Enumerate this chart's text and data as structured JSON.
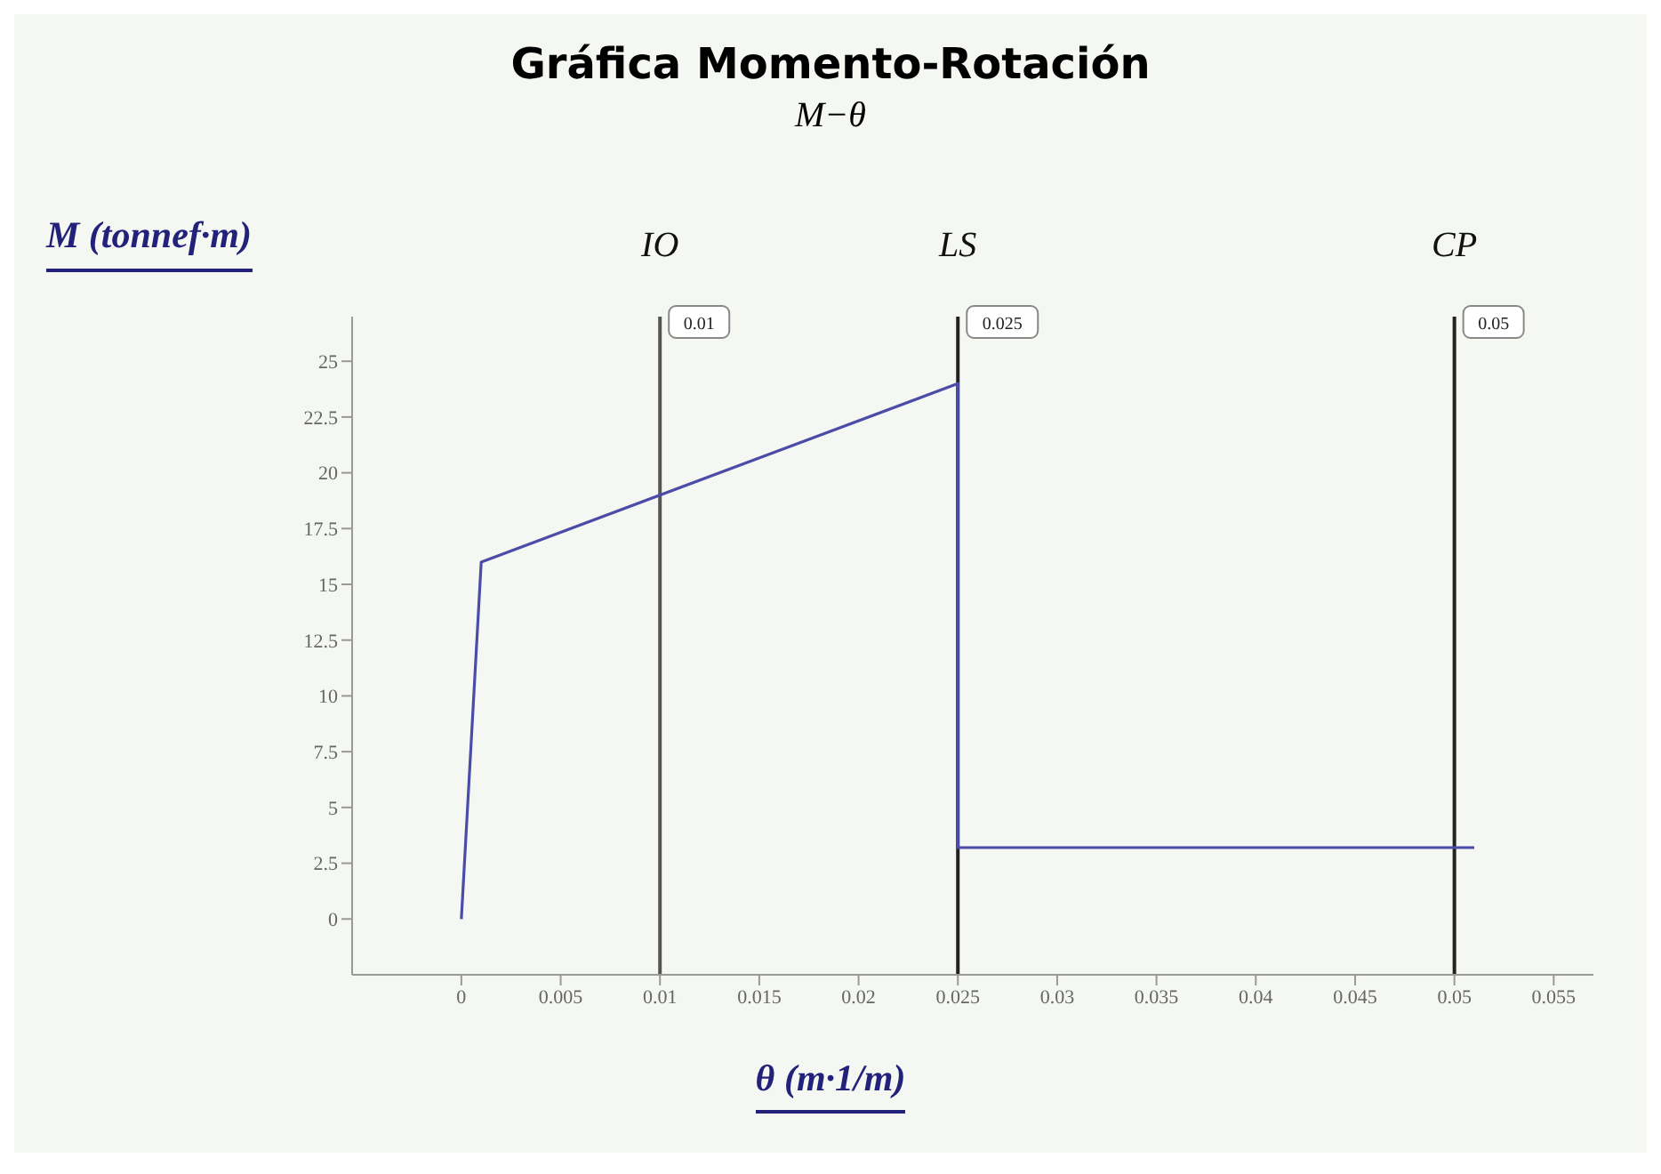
{
  "chart_data": {
    "type": "line",
    "title": "Gráfica Momento-Rotación",
    "subtitle": "M−θ",
    "xlabel": "θ (m·1/m)",
    "ylabel": "M (tonnef·m)",
    "x": [
      0,
      0.001,
      0.025,
      0.025,
      0.051
    ],
    "series": [
      {
        "color": "#4b4ba8",
        "values": [
          0,
          16,
          24,
          3.2,
          3.2
        ]
      }
    ],
    "xlim": [
      -0.0055,
      0.057
    ],
    "xticks": [
      0,
      0.005,
      0.01,
      0.015,
      0.02,
      0.025,
      0.03,
      0.035,
      0.04,
      0.045,
      0.05,
      0.055
    ],
    "ylim": [
      -2.5,
      27
    ],
    "yticks": [
      0,
      2.5,
      5,
      7.5,
      10,
      12.5,
      15,
      17.5,
      20,
      22.5,
      25
    ],
    "ref_lines": [
      {
        "axis": "x",
        "value": 0.01,
        "label": "IO",
        "color": "#555555"
      },
      {
        "axis": "x",
        "value": 0.025,
        "label": "LS",
        "color": "#222222"
      },
      {
        "axis": "x",
        "value": 0.05,
        "label": "CP",
        "color": "#222222"
      }
    ],
    "annotations": [
      {
        "text": "0.01",
        "x": 0.01,
        "y": 27
      },
      {
        "text": "0.025",
        "x": 0.025,
        "y": 27
      },
      {
        "text": "0.05",
        "x": 0.05,
        "y": 27
      }
    ],
    "grid": false,
    "legend": false,
    "marker": "none",
    "line_style": "solid"
  }
}
